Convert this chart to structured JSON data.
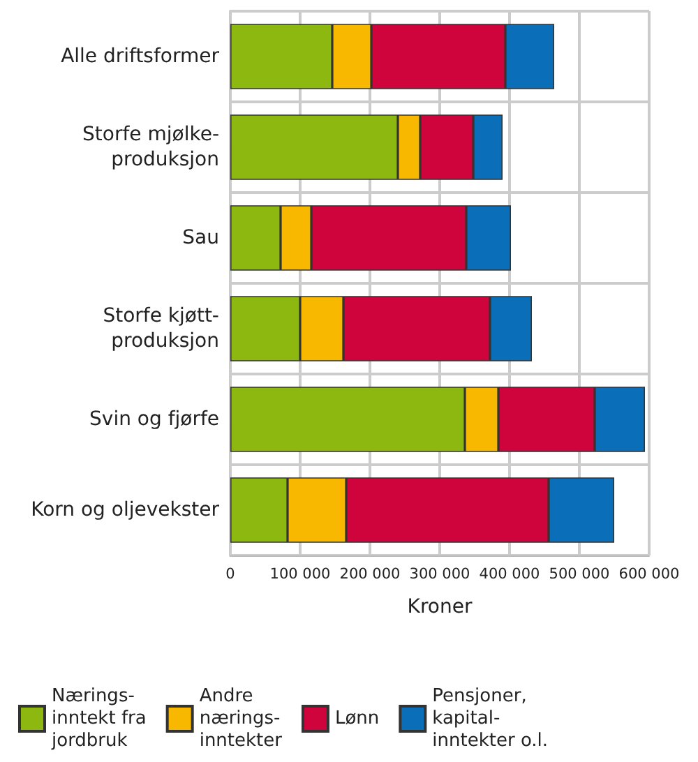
{
  "chart_data": {
    "type": "bar",
    "orientation": "horizontal",
    "stacked": true,
    "xlabel": "Kroner",
    "categories": [
      "Alle driftsformer",
      "Storfe mjølke-\nproduksjon",
      "Sau",
      "Storfe kjøtt-\nproduksjon",
      "Svin og fjørfe",
      "Korn og oljevekster"
    ],
    "series": [
      {
        "name": "Nærings-\ninntekt fra\njordbruk",
        "color": "#8db80f",
        "values": [
          146000,
          240000,
          72000,
          100000,
          336000,
          82000
        ]
      },
      {
        "name": "Andre\nnærings-\ninntekter",
        "color": "#f9b800",
        "values": [
          56000,
          32000,
          44000,
          62000,
          48000,
          84000
        ]
      },
      {
        "name": "Lønn",
        "color": "#d0043c",
        "values": [
          192000,
          76000,
          222000,
          210000,
          138000,
          290000
        ]
      },
      {
        "name": "Pensjoner,\nkapital-\ninntekter o.l.",
        "color": "#0a6fb8",
        "values": [
          70000,
          42000,
          64000,
          60000,
          72000,
          94000
        ]
      }
    ],
    "xlim": [
      0,
      600000
    ],
    "xticks": [
      0,
      {
        "value": 100000,
        "label": "100 000"
      },
      {
        "value": 200000,
        "label": "200 000"
      },
      {
        "value": 300000,
        "label": "300 000"
      },
      {
        "value": 400000,
        "label": "400 000"
      },
      {
        "value": 500000,
        "label": "500 000"
      },
      {
        "value": 600000,
        "label": "600 000"
      }
    ],
    "grid": true,
    "legend": "bottom"
  }
}
